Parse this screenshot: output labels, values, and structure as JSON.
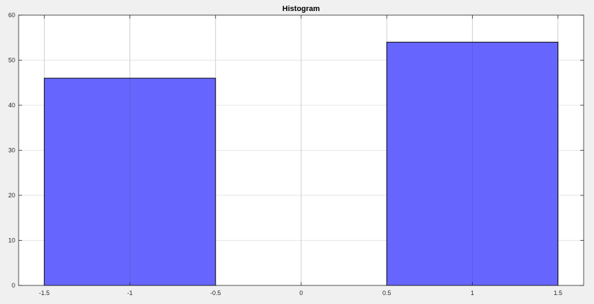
{
  "chart_data": {
    "type": "bar",
    "title": "Histogram",
    "xlabel": "",
    "ylabel": "",
    "xlim": [
      -1.65,
      1.65
    ],
    "ylim": [
      0,
      60
    ],
    "xticks": [
      -1.5,
      -1,
      -0.5,
      0,
      0.5,
      1,
      1.5
    ],
    "xtick_labels": [
      "-1.5",
      "-1",
      "-0.5",
      "0",
      "0.5",
      "1",
      "1.5"
    ],
    "yticks": [
      0,
      10,
      20,
      30,
      40,
      50,
      60
    ],
    "ytick_labels": [
      "0",
      "10",
      "20",
      "30",
      "40",
      "50",
      "60"
    ],
    "grid": true,
    "bars": [
      {
        "x_start": -1.5,
        "x_end": -0.5,
        "value": 46
      },
      {
        "x_start": 0.5,
        "x_end": 1.5,
        "value": 54
      }
    ],
    "colors": {
      "bar_fill": "#6666ff",
      "bar_edge": "#000000",
      "grid": "#dddddd",
      "axes_background": "#ffffff",
      "figure_background": "#f0f0f0"
    }
  }
}
